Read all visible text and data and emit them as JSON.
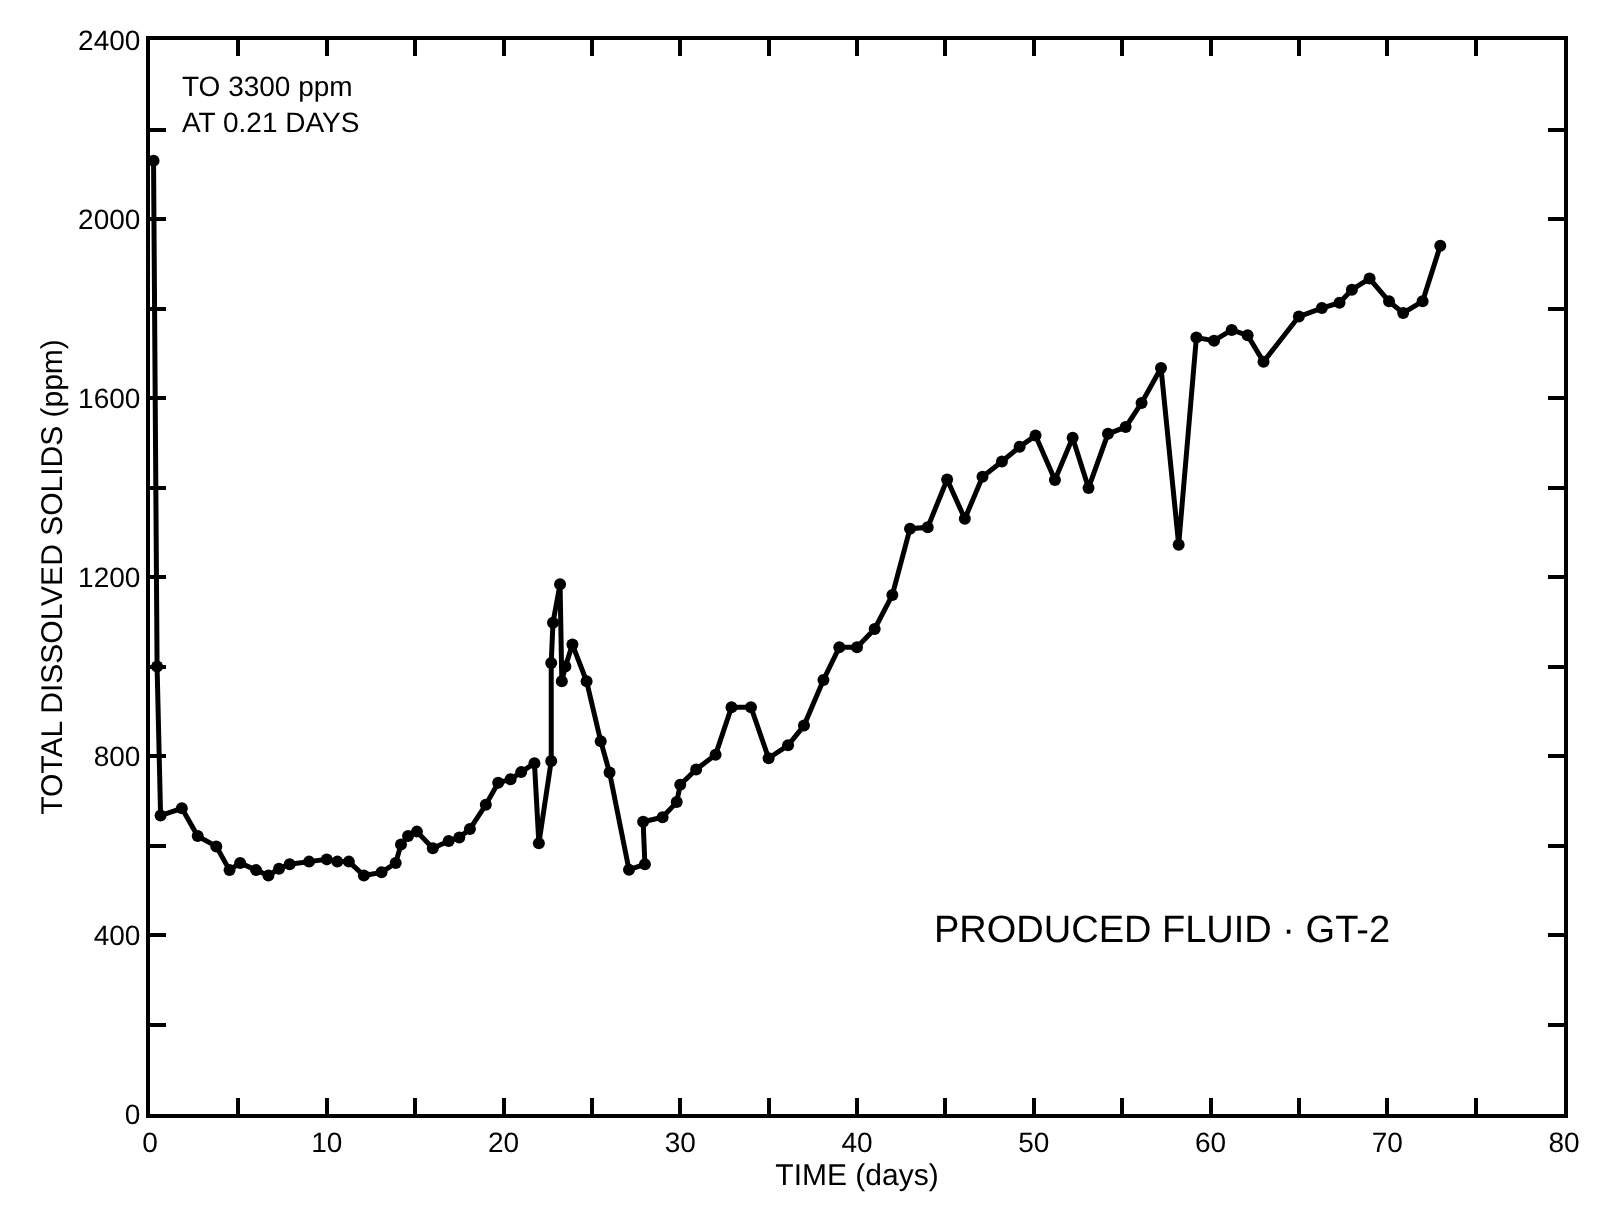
{
  "chart_data": {
    "type": "line",
    "xlabel": "TIME (days)",
    "ylabel": "TOTAL DISSOLVED SOLIDS (ppm)",
    "xlim": [
      0,
      80
    ],
    "ylim": [
      0,
      2400
    ],
    "xticks": [
      0,
      {
        "value": 5,
        "label": null
      },
      10,
      {
        "value": 15,
        "label": null
      },
      20,
      {
        "value": 25,
        "label": null
      },
      30,
      {
        "value": 35,
        "label": null
      },
      40,
      {
        "value": 45,
        "label": null
      },
      50,
      {
        "value": 55,
        "label": null
      },
      60,
      {
        "value": 65,
        "label": null
      },
      70,
      {
        "value": 75,
        "label": null
      },
      80
    ],
    "yticks": [
      0,
      {
        "value": 200,
        "label": null
      },
      400,
      {
        "value": 600,
        "label": null
      },
      800,
      {
        "value": 1000,
        "label": null
      },
      1200,
      {
        "value": 1400,
        "label": null
      },
      1600,
      {
        "value": 1800,
        "label": null
      },
      2000,
      {
        "value": 2200,
        "label": null
      },
      2400
    ],
    "marker": "circle",
    "line_style": "solid",
    "annotations": [
      "TO 3300 ppm\nAT 0.21 DAYS",
      "PRODUCED FLUID · GT-2"
    ],
    "series": [
      {
        "color": "#000000",
        "x": [
          0.2,
          0.4,
          0.6,
          1.8,
          2.7,
          3.75,
          4.5,
          5.1,
          6.0,
          6.7,
          7.3,
          7.9,
          9.0,
          10.0,
          10.6,
          11.25,
          12.1,
          13.1,
          13.9,
          14.2,
          14.6,
          15.1,
          16.0,
          16.9,
          17.5,
          18.1,
          19.0,
          19.7,
          20.4,
          21.0,
          21.75,
          22.0,
          22.7,
          22.7,
          22.8,
          23.2,
          23.3,
          23.5,
          23.9,
          24.7,
          25.5,
          26.0,
          27.1,
          28.0,
          27.9,
          29.0,
          29.8,
          30.0,
          30.9,
          32.0,
          32.9,
          34.0,
          35.0,
          36.1,
          37.0,
          38.1,
          39.0,
          40.0,
          41.0,
          42.0,
          43.0,
          44.0,
          45.1,
          46.1,
          47.1,
          48.2,
          49.2,
          50.1,
          51.2,
          52.2,
          53.1,
          54.2,
          55.2,
          56.1,
          57.2,
          58.2,
          59.2,
          60.2,
          61.2,
          62.1,
          63.0,
          65.0,
          66.3,
          67.3,
          68.0,
          69.0,
          70.1,
          70.9,
          72.0,
          73.0
        ],
        "values": [
          2130,
          1000,
          667,
          683,
          621,
          598,
          545,
          561,
          545,
          533,
          548,
          558,
          564,
          569,
          564,
          564,
          533,
          540,
          561,
          602,
          621,
          631,
          594,
          610,
          618,
          637,
          691,
          740,
          748,
          764,
          784,
          605,
          789,
          1008,
          1098,
          1184,
          967,
          1000,
          1049,
          967,
          833,
          763,
          546,
          558,
          653,
          663,
          697,
          736,
          770,
          803,
          909,
          909,
          795,
          824,
          868,
          970,
          1043,
          1043,
          1084,
          1160,
          1308,
          1311,
          1418,
          1330,
          1424,
          1458,
          1491,
          1516,
          1417,
          1511,
          1399,
          1520,
          1535,
          1589,
          1667,
          1272,
          1735,
          1728,
          1752,
          1740,
          1681,
          1782,
          1801,
          1813,
          1842,
          1867,
          1816,
          1790,
          1816,
          1940
        ]
      }
    ]
  }
}
